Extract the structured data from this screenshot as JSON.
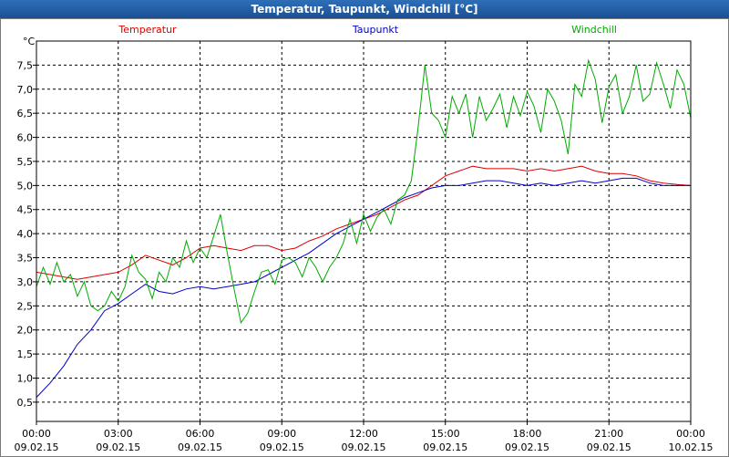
{
  "window": {
    "title": "Temperatur, Taupunkt, Windchill [°C]"
  },
  "chart_data": {
    "type": "line",
    "title": "Temperatur, Taupunkt, Windchill [°C]",
    "ylabel": "°C",
    "ylim": [
      0.1,
      8.0
    ],
    "yticks": [
      0.5,
      1.0,
      1.5,
      2.0,
      2.5,
      3.0,
      3.5,
      4.0,
      4.5,
      5.0,
      5.5,
      6.0,
      6.5,
      7.0,
      7.5
    ],
    "ytick_labels": [
      "0,5",
      "1,0",
      "1,5",
      "2,0",
      "2,5",
      "3,0",
      "3,5",
      "4,0",
      "4,5",
      "5,0",
      "5,5",
      "6,0",
      "6,5",
      "7,0",
      "7,5"
    ],
    "x_unit": "hours since 09.02.15 00:00",
    "xlim": [
      0,
      24
    ],
    "xticks": [
      0,
      3,
      6,
      9,
      12,
      15,
      18,
      21,
      24
    ],
    "xtick_time": [
      "00:00",
      "03:00",
      "06:00",
      "09:00",
      "12:00",
      "15:00",
      "18:00",
      "21:00",
      "00:00"
    ],
    "xtick_date": [
      "09.02.15",
      "09.02.15",
      "09.02.15",
      "09.02.15",
      "09.02.15",
      "09.02.15",
      "09.02.15",
      "09.02.15",
      "10.02.15"
    ],
    "grid": true,
    "legend_placement": "top",
    "series": [
      {
        "name": "Temperatur",
        "color": "#dd0000",
        "x": [
          0,
          0.5,
          1,
          1.5,
          2,
          2.5,
          3,
          3.5,
          4,
          4.5,
          5,
          5.5,
          6,
          6.5,
          7,
          7.5,
          8,
          8.5,
          9,
          9.5,
          10,
          10.5,
          11,
          11.5,
          12,
          12.5,
          13,
          13.5,
          14,
          14.5,
          15,
          15.5,
          16,
          16.5,
          17,
          17.5,
          18,
          18.5,
          19,
          19.5,
          20,
          20.5,
          21,
          21.5,
          22,
          22.5,
          23,
          23.5,
          24
        ],
        "y": [
          3.2,
          3.15,
          3.1,
          3.05,
          3.1,
          3.15,
          3.2,
          3.35,
          3.55,
          3.45,
          3.35,
          3.5,
          3.7,
          3.75,
          3.7,
          3.65,
          3.75,
          3.75,
          3.65,
          3.7,
          3.85,
          3.95,
          4.1,
          4.2,
          4.3,
          4.4,
          4.55,
          4.7,
          4.8,
          5.0,
          5.2,
          5.3,
          5.4,
          5.35,
          5.35,
          5.35,
          5.3,
          5.35,
          5.3,
          5.35,
          5.4,
          5.3,
          5.25,
          5.25,
          5.2,
          5.1,
          5.05,
          5.02,
          5.0
        ]
      },
      {
        "name": "Taupunkt",
        "color": "#0000cc",
        "x": [
          0,
          0.5,
          1,
          1.5,
          2,
          2.5,
          3,
          3.5,
          4,
          4.5,
          5,
          5.5,
          6,
          6.5,
          7,
          7.5,
          8,
          8.5,
          9,
          9.5,
          10,
          10.5,
          11,
          11.5,
          12,
          12.5,
          13,
          13.5,
          14,
          14.5,
          15,
          15.5,
          16,
          16.5,
          17,
          17.5,
          18,
          18.5,
          19,
          19.5,
          20,
          20.5,
          21,
          21.5,
          22,
          22.5,
          23,
          23.5,
          24
        ],
        "y": [
          0.6,
          0.9,
          1.25,
          1.7,
          2.0,
          2.4,
          2.55,
          2.75,
          2.95,
          2.8,
          2.75,
          2.85,
          2.9,
          2.85,
          2.9,
          2.95,
          3.0,
          3.15,
          3.3,
          3.45,
          3.6,
          3.8,
          4.0,
          4.15,
          4.3,
          4.45,
          4.6,
          4.75,
          4.85,
          4.95,
          5.0,
          5.0,
          5.05,
          5.1,
          5.1,
          5.05,
          5.0,
          5.05,
          5.0,
          5.05,
          5.1,
          5.05,
          5.1,
          5.15,
          5.15,
          5.05,
          5.0,
          5.0,
          5.0
        ]
      },
      {
        "name": "Windchill",
        "color": "#00aa00",
        "x": [
          0,
          0.25,
          0.5,
          0.75,
          1,
          1.25,
          1.5,
          1.75,
          2,
          2.25,
          2.5,
          2.75,
          3,
          3.25,
          3.5,
          3.75,
          4,
          4.25,
          4.5,
          4.75,
          5,
          5.25,
          5.5,
          5.75,
          6,
          6.25,
          6.5,
          6.75,
          7,
          7.25,
          7.5,
          7.75,
          8,
          8.25,
          8.5,
          8.75,
          9,
          9.25,
          9.5,
          9.75,
          10,
          10.25,
          10.5,
          10.75,
          11,
          11.25,
          11.5,
          11.75,
          12,
          12.25,
          12.5,
          12.75,
          13,
          13.25,
          13.5,
          13.75,
          14,
          14.25,
          14.5,
          14.75,
          15,
          15.25,
          15.5,
          15.75,
          16,
          16.25,
          16.5,
          16.75,
          17,
          17.25,
          17.5,
          17.75,
          18,
          18.25,
          18.5,
          18.75,
          19,
          19.25,
          19.5,
          19.75,
          20,
          20.25,
          20.5,
          20.75,
          21,
          21.25,
          21.5,
          21.75,
          22,
          22.25,
          22.5,
          22.75,
          23,
          23.25,
          23.5,
          23.75,
          24
        ],
        "y": [
          2.9,
          3.3,
          2.95,
          3.4,
          3.0,
          3.15,
          2.7,
          3.0,
          2.5,
          2.4,
          2.5,
          2.8,
          2.6,
          2.9,
          3.55,
          3.2,
          3.05,
          2.65,
          3.2,
          3.0,
          3.5,
          3.3,
          3.85,
          3.4,
          3.7,
          3.5,
          3.95,
          4.4,
          3.6,
          2.85,
          2.15,
          2.35,
          2.8,
          3.2,
          3.25,
          2.95,
          3.45,
          3.5,
          3.4,
          3.1,
          3.5,
          3.3,
          3.0,
          3.3,
          3.5,
          3.8,
          4.3,
          3.8,
          4.4,
          4.05,
          4.35,
          4.5,
          4.2,
          4.7,
          4.8,
          5.1,
          6.2,
          7.5,
          6.5,
          6.35,
          6.0,
          6.85,
          6.5,
          6.9,
          6.0,
          6.85,
          6.35,
          6.6,
          6.9,
          6.2,
          6.85,
          6.45,
          6.95,
          6.65,
          6.1,
          7.0,
          6.75,
          6.35,
          5.65,
          7.1,
          6.85,
          7.6,
          7.2,
          6.3,
          7.05,
          7.3,
          6.5,
          6.85,
          7.5,
          6.75,
          6.9,
          7.55,
          7.1,
          6.6,
          7.4,
          7.1,
          6.4
        ]
      }
    ]
  }
}
